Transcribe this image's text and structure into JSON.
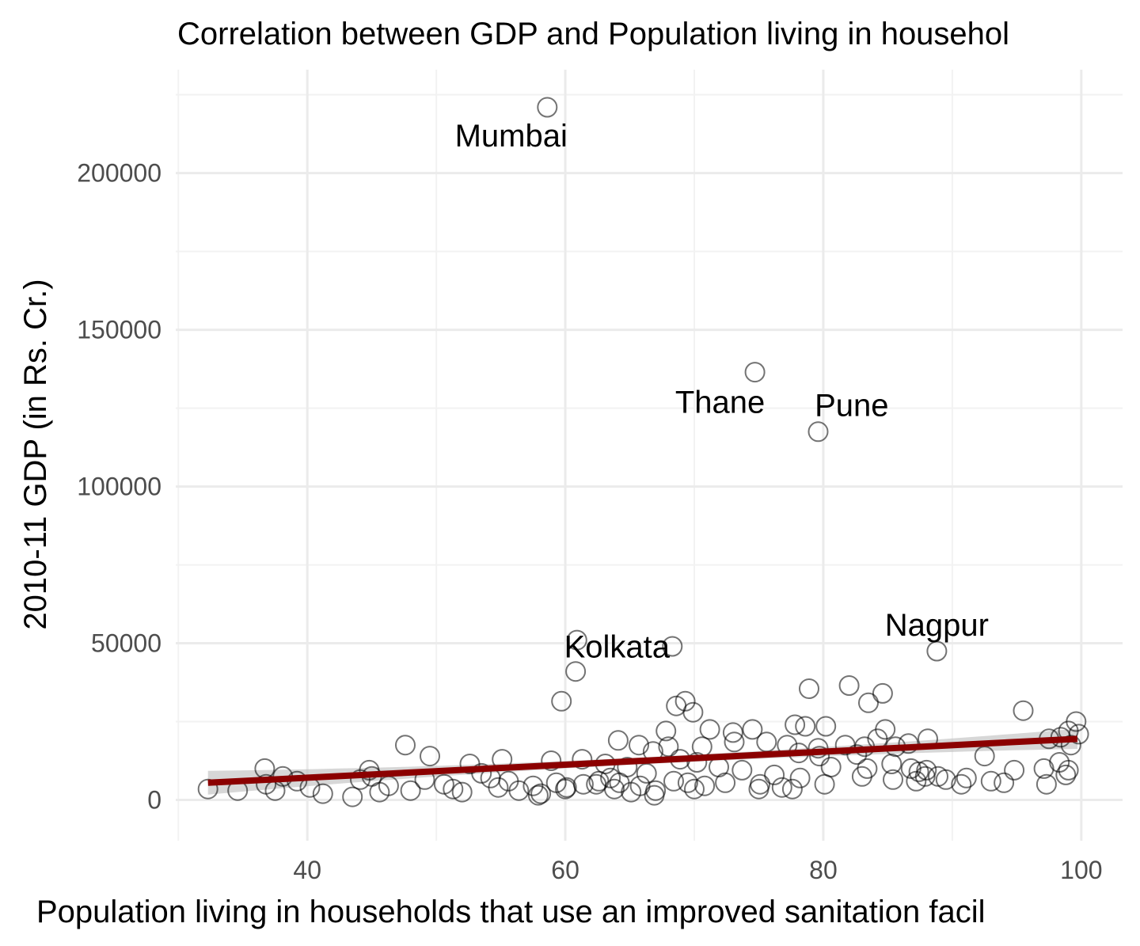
{
  "chart_data": {
    "type": "scatter",
    "title": "Correlation between GDP and Population living in househol",
    "xlabel": "Population living in households that use an improved sanitation facil",
    "ylabel": "2010-11 GDP (in Rs. Cr.)",
    "xlim": [
      29.8,
      103.2
    ],
    "ylim": [
      -13000,
      233000
    ],
    "x_ticks": [
      40,
      60,
      80,
      100
    ],
    "x_tick_labels": [
      "40",
      "60",
      "80",
      "100"
    ],
    "y_ticks": [
      0,
      50000,
      100000,
      150000,
      200000
    ],
    "y_tick_labels": [
      "0",
      "50000",
      "100000",
      "150000",
      "200000"
    ],
    "grid": true,
    "legend": "none",
    "colors": {
      "points": "#000000",
      "fit_line": "#8b0000",
      "confidence_band": "#bdbdbd",
      "grid": "#ebebeb"
    },
    "fit": {
      "method": "linear",
      "x_range": [
        32.3,
        99.7
      ],
      "y_at_xmin": 5500,
      "y_at_xmax": 19500,
      "band_halfwidth_at_xmin": 3800,
      "band_halfwidth_at_center": 1100,
      "band_halfwidth_at_xmax": 3200
    },
    "labels": [
      {
        "text": "Mumbai",
        "x": 55.8,
        "y": 212000
      },
      {
        "text": "Thane",
        "x": 72.0,
        "y": 127000
      },
      {
        "text": "Pune",
        "x": 82.2,
        "y": 126000
      },
      {
        "text": "Kolkata",
        "x": 64.0,
        "y": 49000
      },
      {
        "text": "Nagpur",
        "x": 88.8,
        "y": 56000
      }
    ],
    "points": [
      [
        58.6,
        221000
      ],
      [
        74.7,
        136500
      ],
      [
        79.6,
        117500
      ],
      [
        60.9,
        51000
      ],
      [
        68.3,
        49000
      ],
      [
        88.8,
        47500
      ],
      [
        60.8,
        41000
      ],
      [
        59.7,
        31500
      ],
      [
        78.9,
        35500
      ],
      [
        82.0,
        36500
      ],
      [
        84.6,
        34000
      ],
      [
        83.5,
        31000
      ],
      [
        68.6,
        30000
      ],
      [
        69.3,
        31500
      ],
      [
        69.9,
        28000
      ],
      [
        95.5,
        28500
      ],
      [
        99.6,
        25000
      ],
      [
        99.8,
        21000
      ],
      [
        99.0,
        22000
      ],
      [
        98.4,
        20000
      ],
      [
        97.5,
        19500
      ],
      [
        99.2,
        17500
      ],
      [
        67.8,
        22000
      ],
      [
        71.2,
        22500
      ],
      [
        73.0,
        21500
      ],
      [
        74.5,
        22500
      ],
      [
        77.8,
        24000
      ],
      [
        78.6,
        23500
      ],
      [
        80.2,
        23500
      ],
      [
        84.8,
        22500
      ],
      [
        84.2,
        19500
      ],
      [
        88.1,
        19500
      ],
      [
        86.6,
        18000
      ],
      [
        85.6,
        17000
      ],
      [
        83.2,
        17000
      ],
      [
        81.7,
        17500
      ],
      [
        79.6,
        16500
      ],
      [
        77.2,
        17500
      ],
      [
        75.6,
        18500
      ],
      [
        73.1,
        18500
      ],
      [
        70.6,
        17000
      ],
      [
        68.0,
        17000
      ],
      [
        65.7,
        17500
      ],
      [
        64.1,
        19000
      ],
      [
        66.8,
        15500
      ],
      [
        47.6,
        17500
      ],
      [
        49.5,
        14000
      ],
      [
        36.7,
        10000
      ],
      [
        44.8,
        9500
      ],
      [
        55.1,
        13000
      ],
      [
        58.9,
        12500
      ],
      [
        61.3,
        13000
      ],
      [
        63.1,
        11500
      ],
      [
        64.8,
        10500
      ],
      [
        66.3,
        8500
      ],
      [
        68.9,
        13000
      ],
      [
        70.2,
        12000
      ],
      [
        71.9,
        10500
      ],
      [
        73.7,
        9500
      ],
      [
        76.2,
        8000
      ],
      [
        78.1,
        15000
      ],
      [
        79.7,
        14000
      ],
      [
        80.6,
        10500
      ],
      [
        82.6,
        14500
      ],
      [
        83.4,
        10000
      ],
      [
        85.3,
        11500
      ],
      [
        86.8,
        10000
      ],
      [
        88.0,
        9500
      ],
      [
        88.9,
        7500
      ],
      [
        91.1,
        7000
      ],
      [
        92.5,
        14000
      ],
      [
        94.8,
        9500
      ],
      [
        97.1,
        10000
      ],
      [
        99.0,
        9500
      ],
      [
        98.8,
        8000
      ],
      [
        97.3,
        5000
      ],
      [
        94.0,
        5500
      ],
      [
        90.7,
        5000
      ],
      [
        87.2,
        6000
      ],
      [
        85.4,
        6500
      ],
      [
        83.0,
        7500
      ],
      [
        80.1,
        5000
      ],
      [
        78.2,
        7000
      ],
      [
        76.8,
        4000
      ],
      [
        75.1,
        5000
      ],
      [
        72.4,
        5500
      ],
      [
        70.8,
        4500
      ],
      [
        69.5,
        5500
      ],
      [
        68.4,
        6000
      ],
      [
        67.0,
        3000
      ],
      [
        65.8,
        4500
      ],
      [
        64.2,
        5500
      ],
      [
        63.5,
        7000
      ],
      [
        62.6,
        6000
      ],
      [
        61.4,
        5000
      ],
      [
        60.1,
        4000
      ],
      [
        59.3,
        5500
      ],
      [
        58.1,
        2000
      ],
      [
        57.5,
        4500
      ],
      [
        56.4,
        3000
      ],
      [
        55.6,
        6000
      ],
      [
        54.2,
        7000
      ],
      [
        52.6,
        11500
      ],
      [
        51.3,
        3500
      ],
      [
        50.6,
        5000
      ],
      [
        48.0,
        3000
      ],
      [
        46.3,
        4500
      ],
      [
        45.6,
        2500
      ],
      [
        44.1,
        6500
      ],
      [
        43.5,
        1000
      ],
      [
        41.2,
        2000
      ],
      [
        40.2,
        4000
      ],
      [
        39.2,
        6000
      ],
      [
        38.1,
        7500
      ],
      [
        37.5,
        3000
      ],
      [
        36.8,
        5000
      ],
      [
        34.6,
        3000
      ],
      [
        32.3,
        3500
      ],
      [
        62.4,
        5000
      ],
      [
        65.1,
        2500
      ],
      [
        60.0,
        3500
      ],
      [
        57.9,
        1500
      ],
      [
        66.9,
        1500
      ],
      [
        75.0,
        3500
      ],
      [
        77.6,
        3500
      ],
      [
        87.4,
        9000
      ],
      [
        87.9,
        7500
      ],
      [
        93.0,
        6000
      ],
      [
        98.3,
        12000
      ],
      [
        89.5,
        6500
      ],
      [
        54.8,
        4000
      ],
      [
        52.0,
        2500
      ],
      [
        53.5,
        8500
      ],
      [
        49.1,
        6500
      ],
      [
        45.0,
        7500
      ],
      [
        63.8,
        3500
      ],
      [
        70.0,
        3500
      ]
    ]
  }
}
